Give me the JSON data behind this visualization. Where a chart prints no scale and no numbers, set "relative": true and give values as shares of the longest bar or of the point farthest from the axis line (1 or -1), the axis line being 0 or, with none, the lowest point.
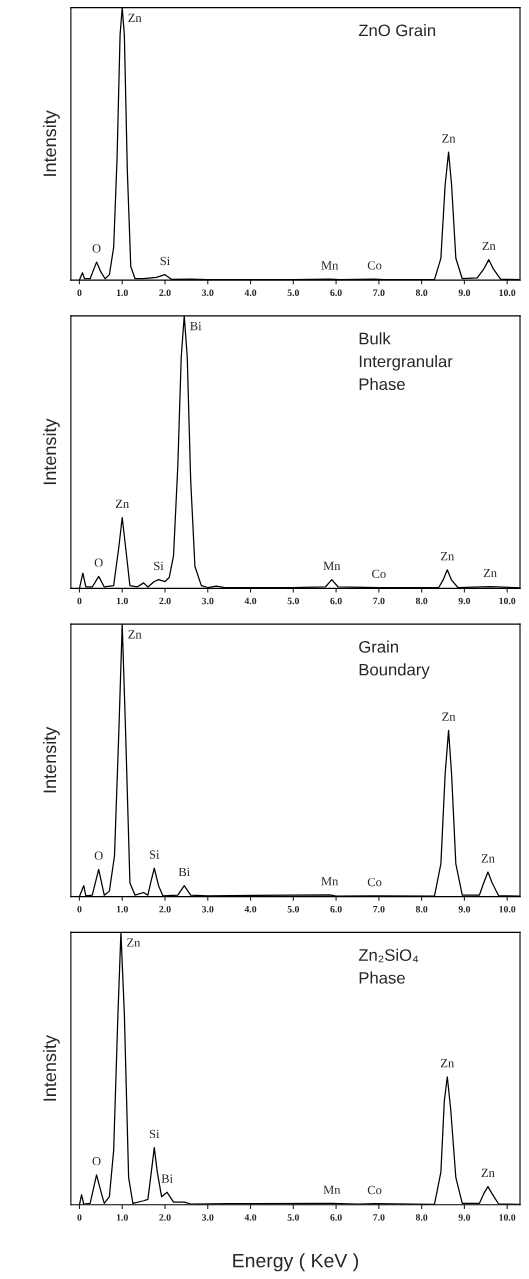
{
  "chart_data": [
    {
      "type": "line",
      "title": "ZnO Grain",
      "ylabel": "Intensity",
      "relative": true,
      "tick_labels": "x",
      "xlim": [
        -0.2,
        10.3
      ],
      "xticks": [
        0,
        {
          "value": 1,
          "label": "1.0"
        },
        {
          "value": 2,
          "label": "2.0"
        },
        {
          "value": 3,
          "label": "3.0"
        },
        {
          "value": 4,
          "label": "4.0"
        },
        {
          "value": 5,
          "label": "5.0"
        },
        {
          "value": 6,
          "label": "6.0"
        },
        {
          "value": 7,
          "label": "7.0"
        },
        {
          "value": 8,
          "label": "8.0"
        },
        {
          "value": 9,
          "label": "9.0"
        },
        {
          "value": 10,
          "label": "10.0"
        }
      ],
      "x": [
        0,
        0.07,
        0.12,
        0.25,
        0.4,
        0.5,
        0.6,
        0.7,
        0.8,
        0.88,
        0.95,
        1.0,
        1.05,
        1.12,
        1.2,
        1.3,
        1.5,
        1.8,
        2.0,
        2.15,
        2.6,
        3.0,
        5.0,
        5.85,
        6.1,
        6.9,
        7.1,
        8.3,
        8.45,
        8.55,
        8.63,
        8.7,
        8.8,
        8.95,
        9.3,
        9.45,
        9.57,
        9.68,
        9.85,
        10.3
      ],
      "series": [
        {
          "color": "#000000",
          "values": [
            0,
            0.027,
            0.005,
            0.005,
            0.066,
            0.03,
            0.005,
            0.02,
            0.12,
            0.45,
            0.9,
            1.0,
            0.9,
            0.4,
            0.05,
            0.005,
            0.005,
            0.01,
            0.02,
            0.003,
            0.004,
            0.002,
            0.002,
            0.004,
            0.002,
            0.004,
            0.002,
            0.002,
            0.08,
            0.35,
            0.47,
            0.35,
            0.08,
            0.005,
            0.008,
            0.04,
            0.075,
            0.04,
            0.003,
            0.002
          ]
        }
      ],
      "annotations": [
        {
          "text": "O",
          "x": 0.4,
          "y": 0.066
        },
        {
          "text": "Zn",
          "x": 1.0,
          "y": 1.0
        },
        {
          "text": "Si",
          "x": 2.0,
          "y": 0.02
        },
        {
          "text": "Mn",
          "x": 5.85,
          "y": 0.004
        },
        {
          "text": "Co",
          "x": 6.9,
          "y": 0.004
        },
        {
          "text": "Zn",
          "x": 8.63,
          "y": 0.47
        },
        {
          "text": "Zn",
          "x": 9.57,
          "y": 0.075
        }
      ]
    },
    {
      "type": "line",
      "title": "Bulk\nIntergranular\nPhase",
      "ylabel": "Intensity",
      "relative": true,
      "tick_labels": "x",
      "xlim": [
        -0.2,
        10.3
      ],
      "xticks": [
        0,
        {
          "value": 1,
          "label": "1.0"
        },
        {
          "value": 2,
          "label": "2.0"
        },
        {
          "value": 3,
          "label": "3.0"
        },
        {
          "value": 4,
          "label": "4.0"
        },
        {
          "value": 5,
          "label": "5.0"
        },
        {
          "value": 6,
          "label": "6.0"
        },
        {
          "value": 7,
          "label": "7.0"
        },
        {
          "value": 8,
          "label": "8.0"
        },
        {
          "value": 9,
          "label": "9.0"
        },
        {
          "value": 10,
          "label": "10.0"
        }
      ],
      "x": [
        0,
        0.08,
        0.15,
        0.3,
        0.45,
        0.58,
        0.8,
        0.92,
        1.0,
        1.08,
        1.18,
        1.35,
        1.5,
        1.6,
        1.75,
        1.85,
        2.0,
        2.1,
        2.2,
        2.3,
        2.38,
        2.45,
        2.52,
        2.6,
        2.7,
        2.85,
        3.0,
        3.2,
        3.4,
        5.0,
        5.75,
        5.9,
        6.05,
        7.0,
        8.4,
        8.5,
        8.6,
        8.7,
        8.85,
        9.6,
        10.3
      ],
      "series": [
        {
          "color": "#000000",
          "values": [
            0,
            0.056,
            0.005,
            0.005,
            0.044,
            0.005,
            0.01,
            0.15,
            0.26,
            0.15,
            0.01,
            0.005,
            0.02,
            0.005,
            0.025,
            0.032,
            0.025,
            0.04,
            0.12,
            0.45,
            0.85,
            1.0,
            0.85,
            0.4,
            0.08,
            0.01,
            0.003,
            0.008,
            0.003,
            0.003,
            0.005,
            0.032,
            0.005,
            0.003,
            0.003,
            0.03,
            0.068,
            0.03,
            0.003,
            0.006,
            0.002
          ]
        }
      ],
      "annotations": [
        {
          "text": "O",
          "x": 0.45,
          "y": 0.044
        },
        {
          "text": "Zn",
          "x": 1.0,
          "y": 0.26
        },
        {
          "text": "Si",
          "x": 1.85,
          "y": 0.032
        },
        {
          "text": "Bi",
          "x": 2.45,
          "y": 1.0
        },
        {
          "text": "Mn",
          "x": 5.9,
          "y": 0.032
        },
        {
          "text": "Co",
          "x": 7.0,
          "y": 0.003
        },
        {
          "text": "Zn",
          "x": 8.6,
          "y": 0.068
        },
        {
          "text": "Zn",
          "x": 9.6,
          "y": 0.006
        }
      ]
    },
    {
      "type": "line",
      "title": "Grain\nBoundary",
      "ylabel": "Intensity",
      "relative": true,
      "tick_labels": "x",
      "xlim": [
        -0.2,
        10.3
      ],
      "xticks": [
        0,
        {
          "value": 1,
          "label": "1.0"
        },
        {
          "value": 2,
          "label": "2.0"
        },
        {
          "value": 3,
          "label": "3.0"
        },
        {
          "value": 4,
          "label": "4.0"
        },
        {
          "value": 5,
          "label": "5.0"
        },
        {
          "value": 6,
          "label": "6.0"
        },
        {
          "value": 7,
          "label": "7.0"
        },
        {
          "value": 8,
          "label": "8.0"
        },
        {
          "value": 9,
          "label": "9.0"
        },
        {
          "value": 10,
          "label": "10.0"
        }
      ],
      "x": [
        0,
        0.1,
        0.15,
        0.3,
        0.45,
        0.58,
        0.7,
        0.82,
        0.92,
        1.0,
        1.08,
        1.18,
        1.3,
        1.5,
        1.6,
        1.68,
        1.75,
        1.85,
        1.95,
        2.3,
        2.45,
        2.6,
        3.0,
        5.85,
        6.0,
        6.9,
        8.3,
        8.45,
        8.55,
        8.63,
        8.7,
        8.8,
        8.95,
        9.35,
        9.45,
        9.55,
        9.65,
        9.8,
        10.3
      ],
      "series": [
        {
          "color": "#000000",
          "values": [
            0,
            0.04,
            0.003,
            0.005,
            0.1,
            0.005,
            0.02,
            0.15,
            0.6,
            1.0,
            0.6,
            0.05,
            0.005,
            0.015,
            0.005,
            0.06,
            0.104,
            0.04,
            0.003,
            0.005,
            0.04,
            0.005,
            0.003,
            0.006,
            0.002,
            0.003,
            0.002,
            0.12,
            0.45,
            0.61,
            0.45,
            0.12,
            0.005,
            0.005,
            0.05,
            0.09,
            0.05,
            0.003,
            0.002
          ]
        }
      ],
      "annotations": [
        {
          "text": "O",
          "x": 0.45,
          "y": 0.1
        },
        {
          "text": "Zn",
          "x": 1.0,
          "y": 1.0
        },
        {
          "text": "Si",
          "x": 1.75,
          "y": 0.104
        },
        {
          "text": "Bi",
          "x": 2.45,
          "y": 0.04
        },
        {
          "text": "Mn",
          "x": 5.85,
          "y": 0.006
        },
        {
          "text": "Co",
          "x": 6.9,
          "y": 0.003
        },
        {
          "text": "Zn",
          "x": 8.63,
          "y": 0.61
        },
        {
          "text": "Zn",
          "x": 9.55,
          "y": 0.09
        }
      ]
    },
    {
      "type": "line",
      "title": "Zn₂SiO₄\nPhase",
      "xlabel": "Energy ( KeV )",
      "ylabel": "Intensity",
      "relative": true,
      "tick_labels": "x",
      "xlim": [
        -0.2,
        10.3
      ],
      "xticks": [
        0,
        {
          "value": 1,
          "label": "1.0"
        },
        {
          "value": 2,
          "label": "2.0"
        },
        {
          "value": 3,
          "label": "3.0"
        },
        {
          "value": 4,
          "label": "4.0"
        },
        {
          "value": 5,
          "label": "5.0"
        },
        {
          "value": 6,
          "label": "6.0"
        },
        {
          "value": 7,
          "label": "7.0"
        },
        {
          "value": 8,
          "label": "8.0"
        },
        {
          "value": 9,
          "label": "9.0"
        },
        {
          "value": 10,
          "label": "10.0"
        }
      ],
      "x": [
        0,
        0.05,
        0.1,
        0.25,
        0.4,
        0.5,
        0.58,
        0.7,
        0.8,
        0.9,
        0.97,
        1.05,
        1.15,
        1.25,
        1.5,
        1.6,
        1.68,
        1.75,
        1.82,
        1.92,
        2.05,
        2.2,
        2.45,
        2.6,
        3.5,
        5.9,
        6.5,
        6.9,
        8.3,
        8.45,
        8.53,
        8.6,
        8.68,
        8.8,
        8.95,
        9.35,
        9.45,
        9.55,
        9.65,
        9.8,
        10.3
      ],
      "series": [
        {
          "color": "#000000",
          "values": [
            0,
            0.037,
            0.003,
            0.005,
            0.11,
            0.05,
            0.005,
            0.03,
            0.2,
            0.7,
            1.0,
            0.7,
            0.1,
            0.005,
            0.015,
            0.02,
            0.12,
            0.21,
            0.12,
            0.03,
            0.046,
            0.01,
            0.01,
            0.003,
            0.004,
            0.005,
            0.003,
            0.004,
            0.002,
            0.12,
            0.38,
            0.47,
            0.35,
            0.1,
            0.005,
            0.005,
            0.04,
            0.067,
            0.04,
            0.003,
            0.002
          ]
        }
      ],
      "annotations": [
        {
          "text": "O",
          "x": 0.4,
          "y": 0.11
        },
        {
          "text": "Zn",
          "x": 0.97,
          "y": 1.0
        },
        {
          "text": "Si",
          "x": 1.75,
          "y": 0.21
        },
        {
          "text": "Bi",
          "x": 2.05,
          "y": 0.046
        },
        {
          "text": "Mn",
          "x": 5.9,
          "y": 0.005
        },
        {
          "text": "Co",
          "x": 6.9,
          "y": 0.004
        },
        {
          "text": "Zn",
          "x": 8.6,
          "y": 0.47
        },
        {
          "text": "Zn",
          "x": 9.55,
          "y": 0.067
        }
      ]
    }
  ]
}
